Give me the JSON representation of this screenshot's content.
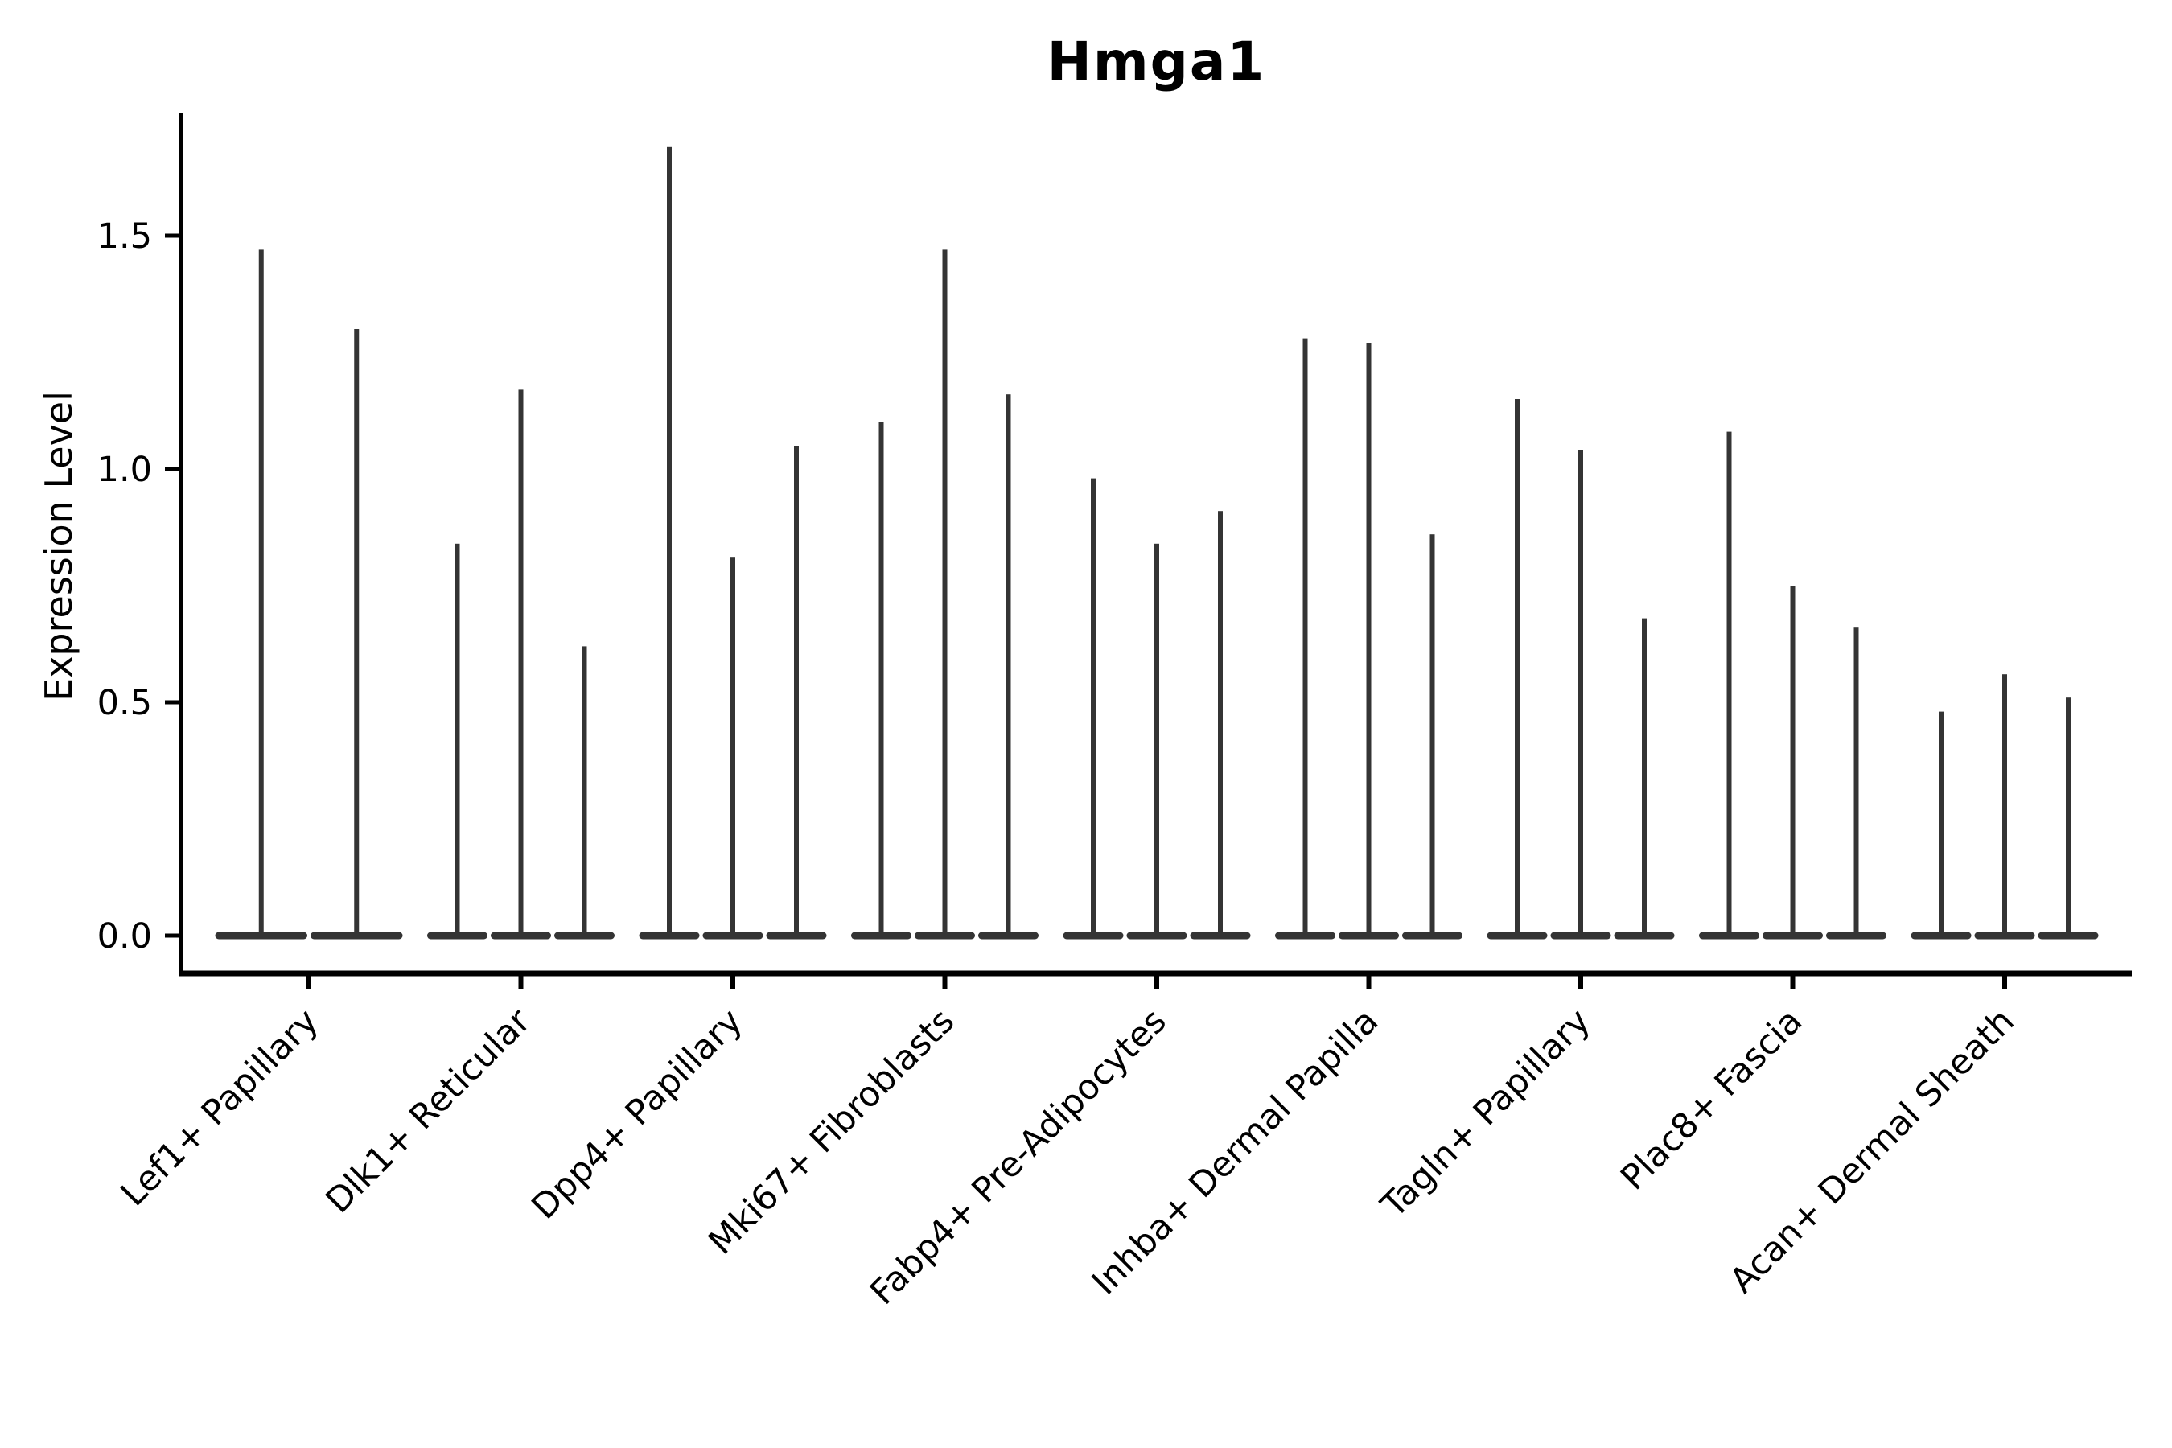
{
  "chart_data": {
    "type": "violin",
    "title": "Hmga1",
    "xlabel": "",
    "ylabel": "Expression Level",
    "grid": false,
    "legend": "none",
    "ylim": [
      0,
      1.75
    ],
    "violin_color": "#343434",
    "axis_color": "#000000",
    "yticks": [
      {
        "label": "0.0",
        "value": 0.0
      },
      {
        "label": "0.5",
        "value": 0.5
      },
      {
        "label": "1.0",
        "value": 1.0
      },
      {
        "label": "1.5",
        "value": 1.5
      }
    ],
    "categories": [
      {
        "label": "Lef1+ Papillary",
        "violin_max_values": [
          1.47,
          1.3
        ]
      },
      {
        "label": "Dlk1+ Reticular",
        "violin_max_values": [
          0.84,
          1.17,
          0.62
        ]
      },
      {
        "label": "Dpp4+ Papillary",
        "violin_max_values": [
          1.69,
          0.81,
          1.05
        ]
      },
      {
        "label": "Mki67+ Fibroblasts",
        "violin_max_values": [
          1.1,
          1.47,
          1.16
        ]
      },
      {
        "label": "Fabp4+ Pre-Adipocytes",
        "violin_max_values": [
          0.98,
          0.84,
          0.91
        ]
      },
      {
        "label": "Inhba+ Dermal Papilla",
        "violin_max_values": [
          1.28,
          1.27,
          0.86
        ]
      },
      {
        "label": "Tagln+ Papillary",
        "violin_max_values": [
          1.15,
          1.04,
          0.68
        ]
      },
      {
        "label": "Plac8+ Fascia",
        "violin_max_values": [
          1.08,
          0.75,
          0.66
        ]
      },
      {
        "label": "Acan+ Dermal Sheath",
        "violin_max_values": [
          0.48,
          0.56,
          0.51
        ]
      }
    ]
  }
}
